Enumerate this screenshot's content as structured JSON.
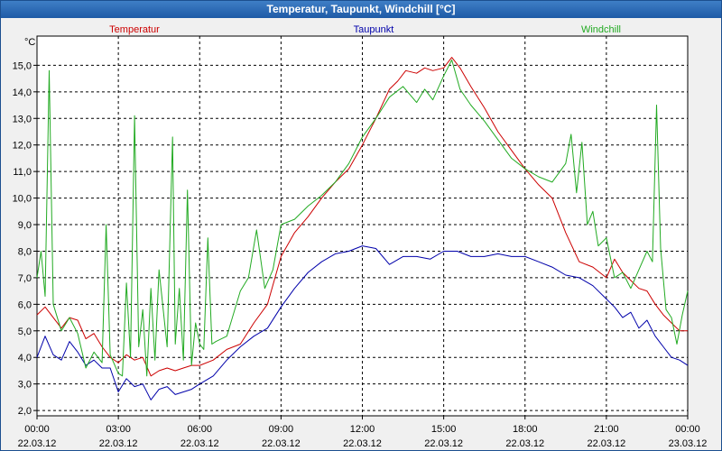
{
  "window": {
    "title": "Temperatur, Taupunkt, Windchill [°C]"
  },
  "colors": {
    "temperatur": "#cc0000",
    "taupunkt": "#0000aa",
    "windchill": "#22aa22",
    "grid": "#000000",
    "plot_bg": "#ffffff"
  },
  "chart_data": {
    "type": "line",
    "title": "Temperatur, Taupunkt, Windchill [°C]",
    "ylabel": "°C",
    "xlabel": "",
    "ylim": [
      1.8,
      16.1
    ],
    "xlim": [
      0,
      24
    ],
    "grid": true,
    "legend": "top",
    "y_ticks": [
      2.0,
      3.0,
      4.0,
      5.0,
      6.0,
      7.0,
      8.0,
      9.0,
      10.0,
      11.0,
      12.0,
      13.0,
      14.0,
      15.0
    ],
    "y_tick_labels": [
      "2,0",
      "3,0",
      "4,0",
      "5,0",
      "6,0",
      "7,0",
      "8,0",
      "9,0",
      "10,0",
      "11,0",
      "12,0",
      "13,0",
      "14,0",
      "15,0"
    ],
    "x_ticks": [
      {
        "time": "00:00",
        "date": "22.03.12"
      },
      {
        "time": "03:00",
        "date": "22.03.12"
      },
      {
        "time": "06:00",
        "date": "22.03.12"
      },
      {
        "time": "09:00",
        "date": "22.03.12"
      },
      {
        "time": "12:00",
        "date": "22.03.12"
      },
      {
        "time": "15:00",
        "date": "22.03.12"
      },
      {
        "time": "18:00",
        "date": "22.03.12"
      },
      {
        "time": "21:00",
        "date": "22.03.12"
      },
      {
        "time": "00:00",
        "date": "23.03.12"
      }
    ],
    "series": [
      {
        "name": "Temperatur",
        "color": "#cc0000",
        "x": [
          0,
          0.3,
          0.6,
          0.9,
          1.2,
          1.5,
          1.8,
          2.1,
          2.4,
          2.7,
          3.0,
          3.3,
          3.6,
          3.9,
          4.2,
          4.5,
          4.8,
          5.1,
          5.4,
          5.7,
          6.0,
          6.5,
          7.0,
          7.5,
          8.0,
          8.5,
          9.0,
          9.5,
          10.0,
          10.5,
          11.0,
          11.5,
          12.0,
          12.5,
          13.0,
          13.3,
          13.6,
          14.0,
          14.3,
          14.6,
          15.0,
          15.3,
          15.6,
          16.0,
          16.5,
          17.0,
          17.5,
          18.0,
          18.5,
          19.0,
          19.5,
          20.0,
          20.5,
          21.0,
          21.3,
          21.6,
          21.9,
          22.2,
          22.5,
          22.8,
          23.1,
          23.4,
          23.7,
          24.0
        ],
        "values": [
          5.6,
          5.9,
          5.5,
          5.1,
          5.5,
          5.4,
          4.7,
          4.9,
          4.4,
          4.0,
          3.8,
          4.1,
          3.9,
          4.0,
          3.3,
          3.5,
          3.6,
          3.5,
          3.6,
          3.7,
          3.7,
          3.9,
          4.3,
          4.5,
          5.3,
          6.0,
          7.8,
          8.7,
          9.3,
          10.0,
          10.6,
          11.1,
          12.0,
          13.0,
          14.1,
          14.4,
          14.8,
          14.7,
          14.9,
          14.8,
          14.9,
          15.3,
          14.9,
          14.2,
          13.4,
          12.5,
          11.8,
          11.1,
          10.5,
          10.0,
          8.7,
          7.6,
          7.4,
          7.0,
          7.7,
          7.2,
          6.9,
          6.6,
          6.5,
          6.0,
          5.6,
          5.3,
          5.0,
          5.0
        ]
      },
      {
        "name": "Taupunkt",
        "color": "#0000aa",
        "x": [
          0,
          0.3,
          0.6,
          0.9,
          1.2,
          1.5,
          1.8,
          2.1,
          2.4,
          2.7,
          3.0,
          3.3,
          3.6,
          3.9,
          4.2,
          4.5,
          4.8,
          5.1,
          5.4,
          5.7,
          6.0,
          6.5,
          7.0,
          7.5,
          8.0,
          8.5,
          9.0,
          9.5,
          10.0,
          10.5,
          11.0,
          11.5,
          12.0,
          12.5,
          13.0,
          13.5,
          14.0,
          14.5,
          15.0,
          15.5,
          16.0,
          16.5,
          17.0,
          17.5,
          18.0,
          18.5,
          19.0,
          19.5,
          20.0,
          20.5,
          21.0,
          21.3,
          21.6,
          21.9,
          22.2,
          22.5,
          22.8,
          23.1,
          23.4,
          23.7,
          24.0
        ],
        "values": [
          4.0,
          4.8,
          4.1,
          3.9,
          4.6,
          4.2,
          3.7,
          3.9,
          3.6,
          3.6,
          2.7,
          3.2,
          2.9,
          3.0,
          2.4,
          2.8,
          2.9,
          2.6,
          2.7,
          2.8,
          3.0,
          3.3,
          3.9,
          4.4,
          4.8,
          5.1,
          5.9,
          6.6,
          7.2,
          7.6,
          7.9,
          8.0,
          8.2,
          8.1,
          7.5,
          7.8,
          7.8,
          7.7,
          8.0,
          8.0,
          7.8,
          7.8,
          7.9,
          7.8,
          7.8,
          7.6,
          7.4,
          7.1,
          7.0,
          6.7,
          6.2,
          5.9,
          5.5,
          5.7,
          5.1,
          5.4,
          4.8,
          4.4,
          4.0,
          3.9,
          3.7
        ]
      },
      {
        "name": "Windchill",
        "color": "#22aa22",
        "x": [
          0,
          0.15,
          0.3,
          0.45,
          0.6,
          0.9,
          1.2,
          1.5,
          1.8,
          2.1,
          2.4,
          2.55,
          2.7,
          3.0,
          3.15,
          3.3,
          3.45,
          3.6,
          3.75,
          3.9,
          4.05,
          4.2,
          4.35,
          4.5,
          4.8,
          5.0,
          5.1,
          5.25,
          5.4,
          5.55,
          5.7,
          5.85,
          6.0,
          6.15,
          6.3,
          6.45,
          6.6,
          7.0,
          7.5,
          7.8,
          8.1,
          8.4,
          8.7,
          9.0,
          9.5,
          10.0,
          10.5,
          11.0,
          11.5,
          12.0,
          12.5,
          13.0,
          13.5,
          14.0,
          14.3,
          14.6,
          15.0,
          15.3,
          15.6,
          16.0,
          16.5,
          17.0,
          17.5,
          18.0,
          18.5,
          19.0,
          19.5,
          19.7,
          19.9,
          20.1,
          20.3,
          20.5,
          20.7,
          21.0,
          21.3,
          21.6,
          21.9,
          22.2,
          22.5,
          22.7,
          22.85,
          23.0,
          23.2,
          23.4,
          23.6,
          23.8,
          24.0
        ],
        "values": [
          7.0,
          8.0,
          6.3,
          14.8,
          6.0,
          5.0,
          5.5,
          4.9,
          3.6,
          4.2,
          3.8,
          9.0,
          4.1,
          3.4,
          3.3,
          6.8,
          4.0,
          13.1,
          4.4,
          5.8,
          3.3,
          6.6,
          3.9,
          7.3,
          4.4,
          12.3,
          4.5,
          6.6,
          3.9,
          10.3,
          3.7,
          5.3,
          4.5,
          4.3,
          8.5,
          4.5,
          4.6,
          4.8,
          6.5,
          7.0,
          8.8,
          6.6,
          7.3,
          9.0,
          9.2,
          9.7,
          10.1,
          10.6,
          11.3,
          12.3,
          13.0,
          13.8,
          14.2,
          13.6,
          14.1,
          13.7,
          14.6,
          15.2,
          14.1,
          13.5,
          12.9,
          12.2,
          11.5,
          11.1,
          10.8,
          10.6,
          11.3,
          12.4,
          10.2,
          12.1,
          9.0,
          9.5,
          8.2,
          8.5,
          7.0,
          7.2,
          6.6,
          7.3,
          8.0,
          7.6,
          13.5,
          8.1,
          5.8,
          5.5,
          4.5,
          5.6,
          6.5
        ]
      }
    ]
  }
}
